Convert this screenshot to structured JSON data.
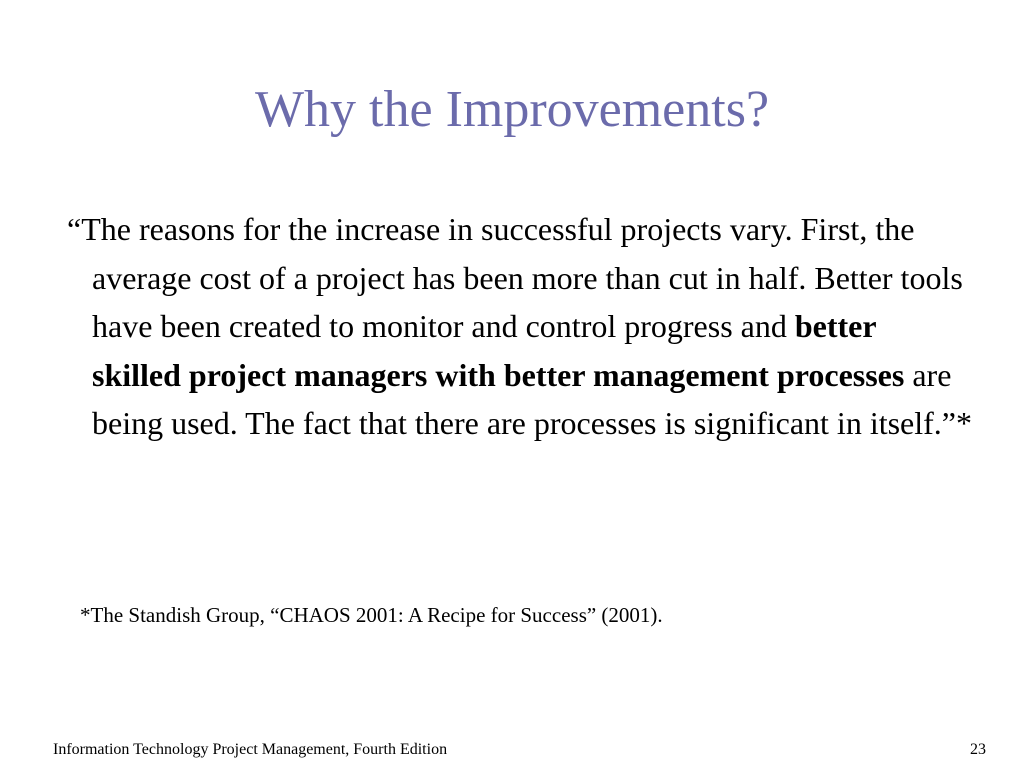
{
  "slide": {
    "title": "Why the Improvements?",
    "quote": {
      "part1": "“The reasons for the increase in successful projects vary. First, the average cost of a project has been more than cut in half. Better tools have been created to monitor and control progress and ",
      "bold": "better skilled project managers with better management processes",
      "part2": " are being used. The fact that there are processes is significant in itself.”*"
    },
    "footnote": "*The Standish Group, “CHAOS 2001: A Recipe for Success” (2001).",
    "footer": {
      "book_title": "Information Technology Project Management, Fourth Edition",
      "page_number": "23"
    },
    "colors": {
      "title": "#6b6bab",
      "text": "#000000",
      "background": "#ffffff"
    }
  }
}
